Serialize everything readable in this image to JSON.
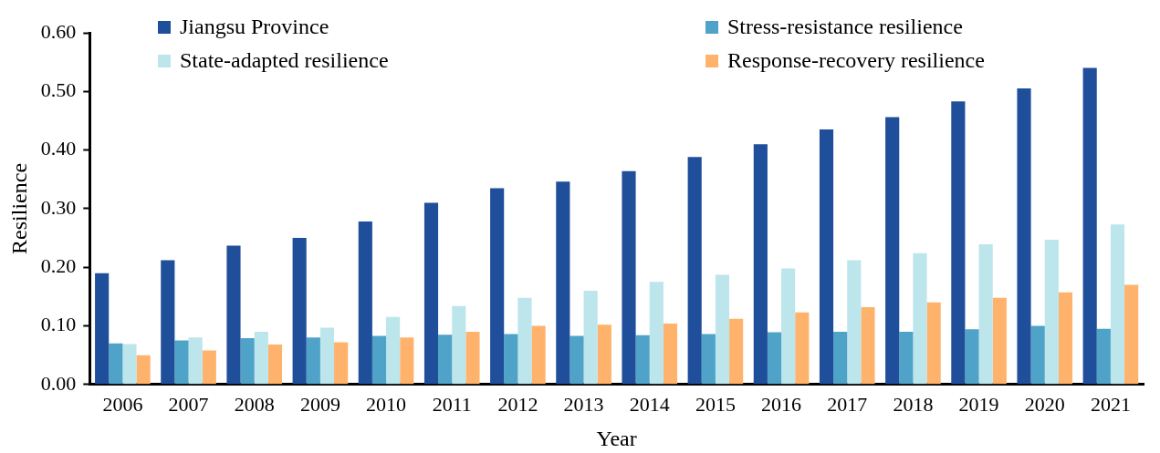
{
  "chart_data": {
    "type": "bar",
    "xlabel": "Year",
    "ylabel": "Resilience",
    "categories": [
      "2006",
      "2007",
      "2008",
      "2009",
      "2010",
      "2011",
      "2012",
      "2013",
      "2014",
      "2015",
      "2016",
      "2017",
      "2018",
      "2019",
      "2020",
      "2021"
    ],
    "series": [
      {
        "name": "Jiangsu Province",
        "color": "#1f4e9a",
        "values": [
          0.19,
          0.212,
          0.237,
          0.25,
          0.278,
          0.31,
          0.335,
          0.346,
          0.364,
          0.388,
          0.41,
          0.435,
          0.456,
          0.483,
          0.505,
          0.54
        ]
      },
      {
        "name": "Stress-resistance resilience",
        "color": "#4fa3c8",
        "values": [
          0.07,
          0.075,
          0.079,
          0.08,
          0.083,
          0.085,
          0.086,
          0.083,
          0.084,
          0.086,
          0.089,
          0.09,
          0.09,
          0.094,
          0.1,
          0.095
        ]
      },
      {
        "name": "State-adapted resilience",
        "color": "#bce5ec",
        "values": [
          0.069,
          0.08,
          0.09,
          0.097,
          0.115,
          0.134,
          0.148,
          0.16,
          0.175,
          0.187,
          0.198,
          0.212,
          0.224,
          0.239,
          0.247,
          0.273
        ]
      },
      {
        "name": "Response-recovery resilience",
        "color": "#ffb26b",
        "values": [
          0.05,
          0.058,
          0.068,
          0.072,
          0.08,
          0.09,
          0.1,
          0.102,
          0.104,
          0.112,
          0.123,
          0.132,
          0.14,
          0.148,
          0.157,
          0.17
        ]
      }
    ],
    "ylim": [
      0,
      0.6
    ],
    "yticks": [
      {
        "value": 0,
        "label": "0.00"
      },
      {
        "value": 0.1,
        "label": "0.10"
      },
      {
        "value": 0.2,
        "label": "0.20"
      },
      {
        "value": 0.3,
        "label": "0.30"
      },
      {
        "value": 0.4,
        "label": "0.40"
      },
      {
        "value": 0.5,
        "label": "0.50"
      },
      {
        "value": 0.6,
        "label": "0.60"
      }
    ],
    "grid": false,
    "legend": "top"
  }
}
